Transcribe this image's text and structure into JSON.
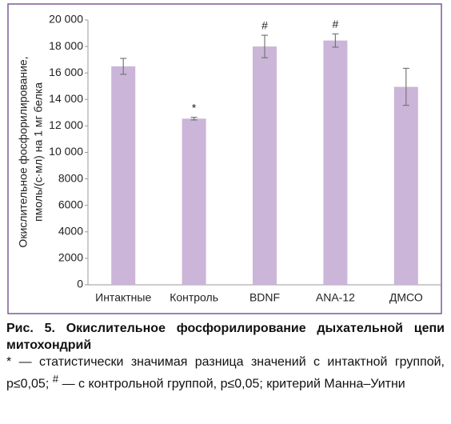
{
  "chart_data": {
    "type": "bar",
    "ylabel": [
      "Окислительное фосфорилирование,",
      "пмоль/(с·мл) на 1 мг белка"
    ],
    "categories": [
      "Интактные",
      "Контроль",
      "BDNF",
      "ANA-12",
      "ДМСО"
    ],
    "values": [
      16500,
      12550,
      18000,
      18450,
      14950
    ],
    "errors": [
      600,
      100,
      850,
      500,
      1400
    ],
    "significance": [
      null,
      "*",
      "#",
      "#",
      null
    ],
    "color": "#cbb5d8",
    "error_color": "#777777",
    "border_color": "#7b5a99",
    "ylim": [
      0,
      20000
    ],
    "yticks": [
      0,
      2000,
      4000,
      6000,
      8000,
      {
        "value": 10000,
        "label": "10 000"
      },
      {
        "value": 12000,
        "label": "12 000"
      },
      {
        "value": 14000,
        "label": "14 000"
      },
      {
        "value": 16000,
        "label": "16 000"
      },
      {
        "value": 18000,
        "label": "18 000"
      },
      {
        "value": 20000,
        "label": "20 000"
      }
    ],
    "grid": false
  },
  "caption": {
    "title": "Рис. 5. Окислительное фосфорилирование дыхательной цепи митохондрий",
    "note": [
      "* — статистически значимая разница значений с интактной группой, p≤0,05; ",
      "#",
      " — с контрольной группой, p≤0,05; критерий Манна–Уитни"
    ]
  }
}
